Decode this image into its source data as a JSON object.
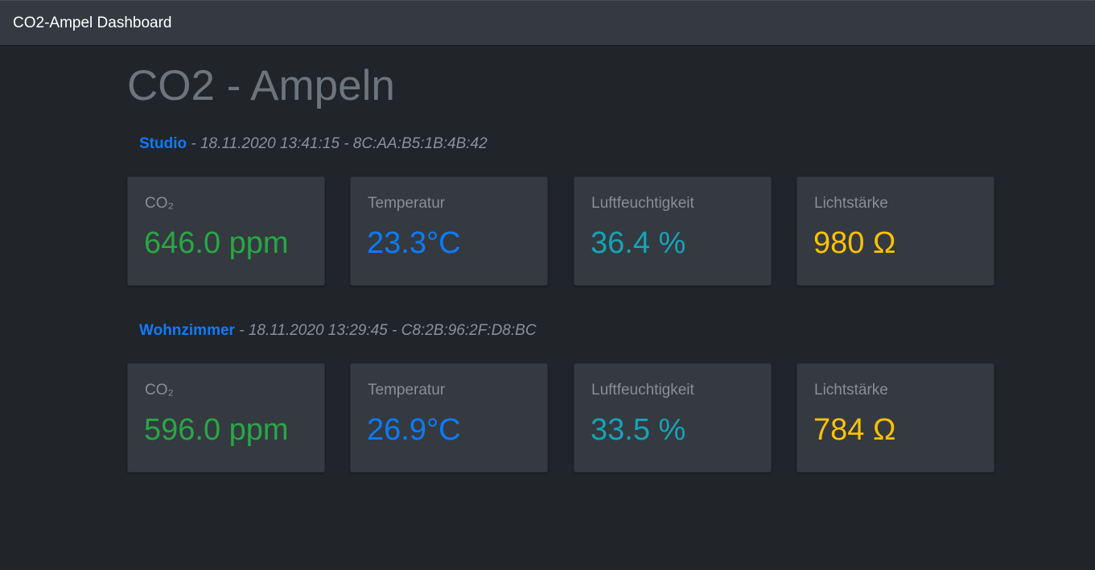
{
  "navbar": {
    "brand": "CO2-Ampel Dashboard"
  },
  "page": {
    "title": "CO2 - Ampeln"
  },
  "devices": [
    {
      "name": "Studio",
      "meta": " - 18.11.2020 13:41:15 - 8C:AA:B5:1B:4B:42",
      "co2": {
        "label": "CO₂",
        "value": "646.0 ppm"
      },
      "temperature": {
        "label": "Temperatur",
        "value": "23.3°C"
      },
      "humidity": {
        "label": "Luftfeuchtigkeit",
        "value": "36.4 %"
      },
      "light": {
        "label": "Lichtstärke",
        "value": "980 Ω"
      }
    },
    {
      "name": "Wohnzimmer",
      "meta": " - 18.11.2020 13:29:45 - C8:2B:96:2F:D8:BC",
      "co2": {
        "label": "CO₂",
        "value": "596.0 ppm"
      },
      "temperature": {
        "label": "Temperatur",
        "value": "26.9°C"
      },
      "humidity": {
        "label": "Luftfeuchtigkeit",
        "value": "33.5 %"
      },
      "light": {
        "label": "Lichtstärke",
        "value": "784 Ω"
      }
    }
  ],
  "colors": {
    "co2": "#28a745",
    "temperature": "#0d7bff",
    "humidity": "#17a2b8",
    "light": "#ffc107"
  }
}
